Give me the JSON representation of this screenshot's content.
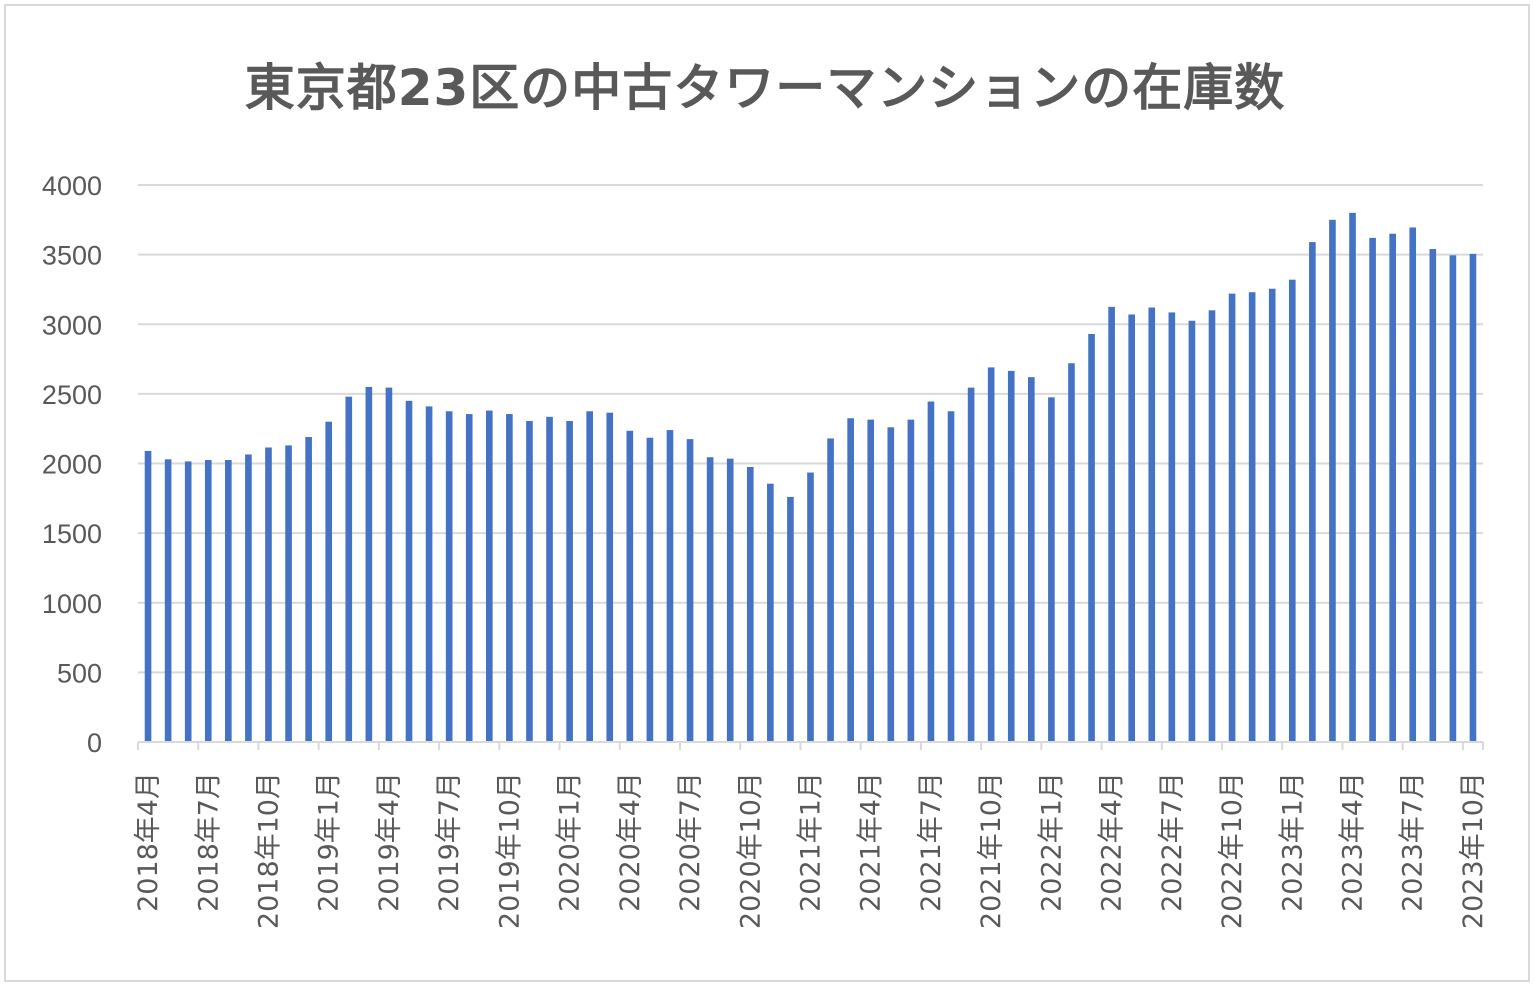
{
  "chart_data": {
    "type": "bar",
    "title": "東京都23区の中古タワーマンションの在庫数",
    "xlabel": "",
    "ylabel": "",
    "ylim": [
      0,
      4000
    ],
    "yticks": [
      0,
      500,
      1000,
      1500,
      2000,
      2500,
      3000,
      3500,
      4000
    ],
    "grid": true,
    "legend": "none",
    "bar_color": "#4472C4",
    "categories": [
      "2018年4月",
      "2018年5月",
      "2018年6月",
      "2018年7月",
      "2018年8月",
      "2018年9月",
      "2018年10月",
      "2018年11月",
      "2018年12月",
      "2019年1月",
      "2019年2月",
      "2019年3月",
      "2019年4月",
      "2019年5月",
      "2019年6月",
      "2019年7月",
      "2019年8月",
      "2019年9月",
      "2019年10月",
      "2019年11月",
      "2019年12月",
      "2020年1月",
      "2020年2月",
      "2020年3月",
      "2020年4月",
      "2020年5月",
      "2020年6月",
      "2020年7月",
      "2020年8月",
      "2020年9月",
      "2020年10月",
      "2020年11月",
      "2020年12月",
      "2021年1月",
      "2021年2月",
      "2021年3月",
      "2021年4月",
      "2021年5月",
      "2021年6月",
      "2021年7月",
      "2021年8月",
      "2021年9月",
      "2021年10月",
      "2021年11月",
      "2021年12月",
      "2022年1月",
      "2022年2月",
      "2022年3月",
      "2022年4月",
      "2022年5月",
      "2022年6月",
      "2022年7月",
      "2022年8月",
      "2022年9月",
      "2022年10月",
      "2022年11月",
      "2022年12月",
      "2023年1月",
      "2023年2月",
      "2023年3月",
      "2023年4月",
      "2023年5月",
      "2023年6月",
      "2023年7月",
      "2023年8月",
      "2023年9月",
      "2023年10月"
    ],
    "values": [
      2090,
      2030,
      2015,
      2025,
      2025,
      2065,
      2115,
      2130,
      2190,
      2300,
      2480,
      2550,
      2545,
      2450,
      2410,
      2375,
      2355,
      2380,
      2355,
      2305,
      2335,
      2305,
      2375,
      2365,
      2235,
      2185,
      2240,
      2175,
      2045,
      2035,
      1975,
      1855,
      1760,
      1935,
      2180,
      2325,
      2315,
      2260,
      2315,
      2445,
      2375,
      2545,
      2690,
      2665,
      2620,
      2475,
      2720,
      2930,
      3125,
      3070,
      3120,
      3085,
      3025,
      3100,
      3220,
      3230,
      3255,
      3320,
      3590,
      3750,
      3800,
      3620,
      3650,
      3695,
      3540,
      3495,
      3505
    ],
    "x_tick_labels": [
      "2018年4月",
      "2018年7月",
      "2018年10月",
      "2019年1月",
      "2019年4月",
      "2019年7月",
      "2019年10月",
      "2020年1月",
      "2020年4月",
      "2020年7月",
      "2020年10月",
      "2021年1月",
      "2021年4月",
      "2021年7月",
      "2021年10月",
      "2022年1月",
      "2022年4月",
      "2022年7月",
      "2022年10月",
      "2023年1月",
      "2023年4月",
      "2023年7月",
      "2023年10月"
    ]
  }
}
